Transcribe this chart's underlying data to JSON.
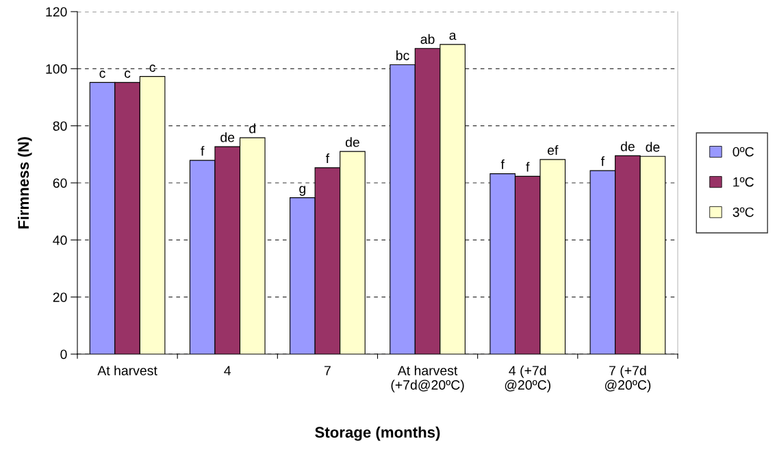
{
  "chart_data": {
    "type": "bar",
    "xlabel": "Storage (months)",
    "ylabel": "Firmness (N)",
    "categories": [
      "At harvest",
      "4",
      "7",
      "At harvest\n(+7d@20ºC)",
      "4 (+7d\n@20ºC)",
      "7 (+7d\n@20ºC)"
    ],
    "series": [
      {
        "name": "0ºC",
        "color": "#9999ff",
        "values": [
          95.2,
          67.9,
          54.8,
          101.4,
          63.2,
          64.3
        ],
        "value_labels": [
          "c",
          "f",
          "g",
          "bc",
          "f",
          "f"
        ]
      },
      {
        "name": "1ºC",
        "color": "#993366",
        "values": [
          95.2,
          72.7,
          65.3,
          107.1,
          62.3,
          69.5
        ],
        "value_labels": [
          "c",
          "de",
          "f",
          "ab",
          "f",
          "de"
        ]
      },
      {
        "name": "3ºC",
        "color": "#ffffcc",
        "values": [
          97.3,
          75.8,
          71.0,
          108.5,
          68.2,
          69.3
        ],
        "value_labels": [
          "c",
          "d",
          "de",
          "a",
          "ef",
          "de"
        ]
      }
    ],
    "ylim": [
      0,
      120
    ],
    "yticks": [
      0,
      20,
      40,
      60,
      80,
      100,
      120
    ],
    "grid": "y",
    "legend": "right"
  }
}
